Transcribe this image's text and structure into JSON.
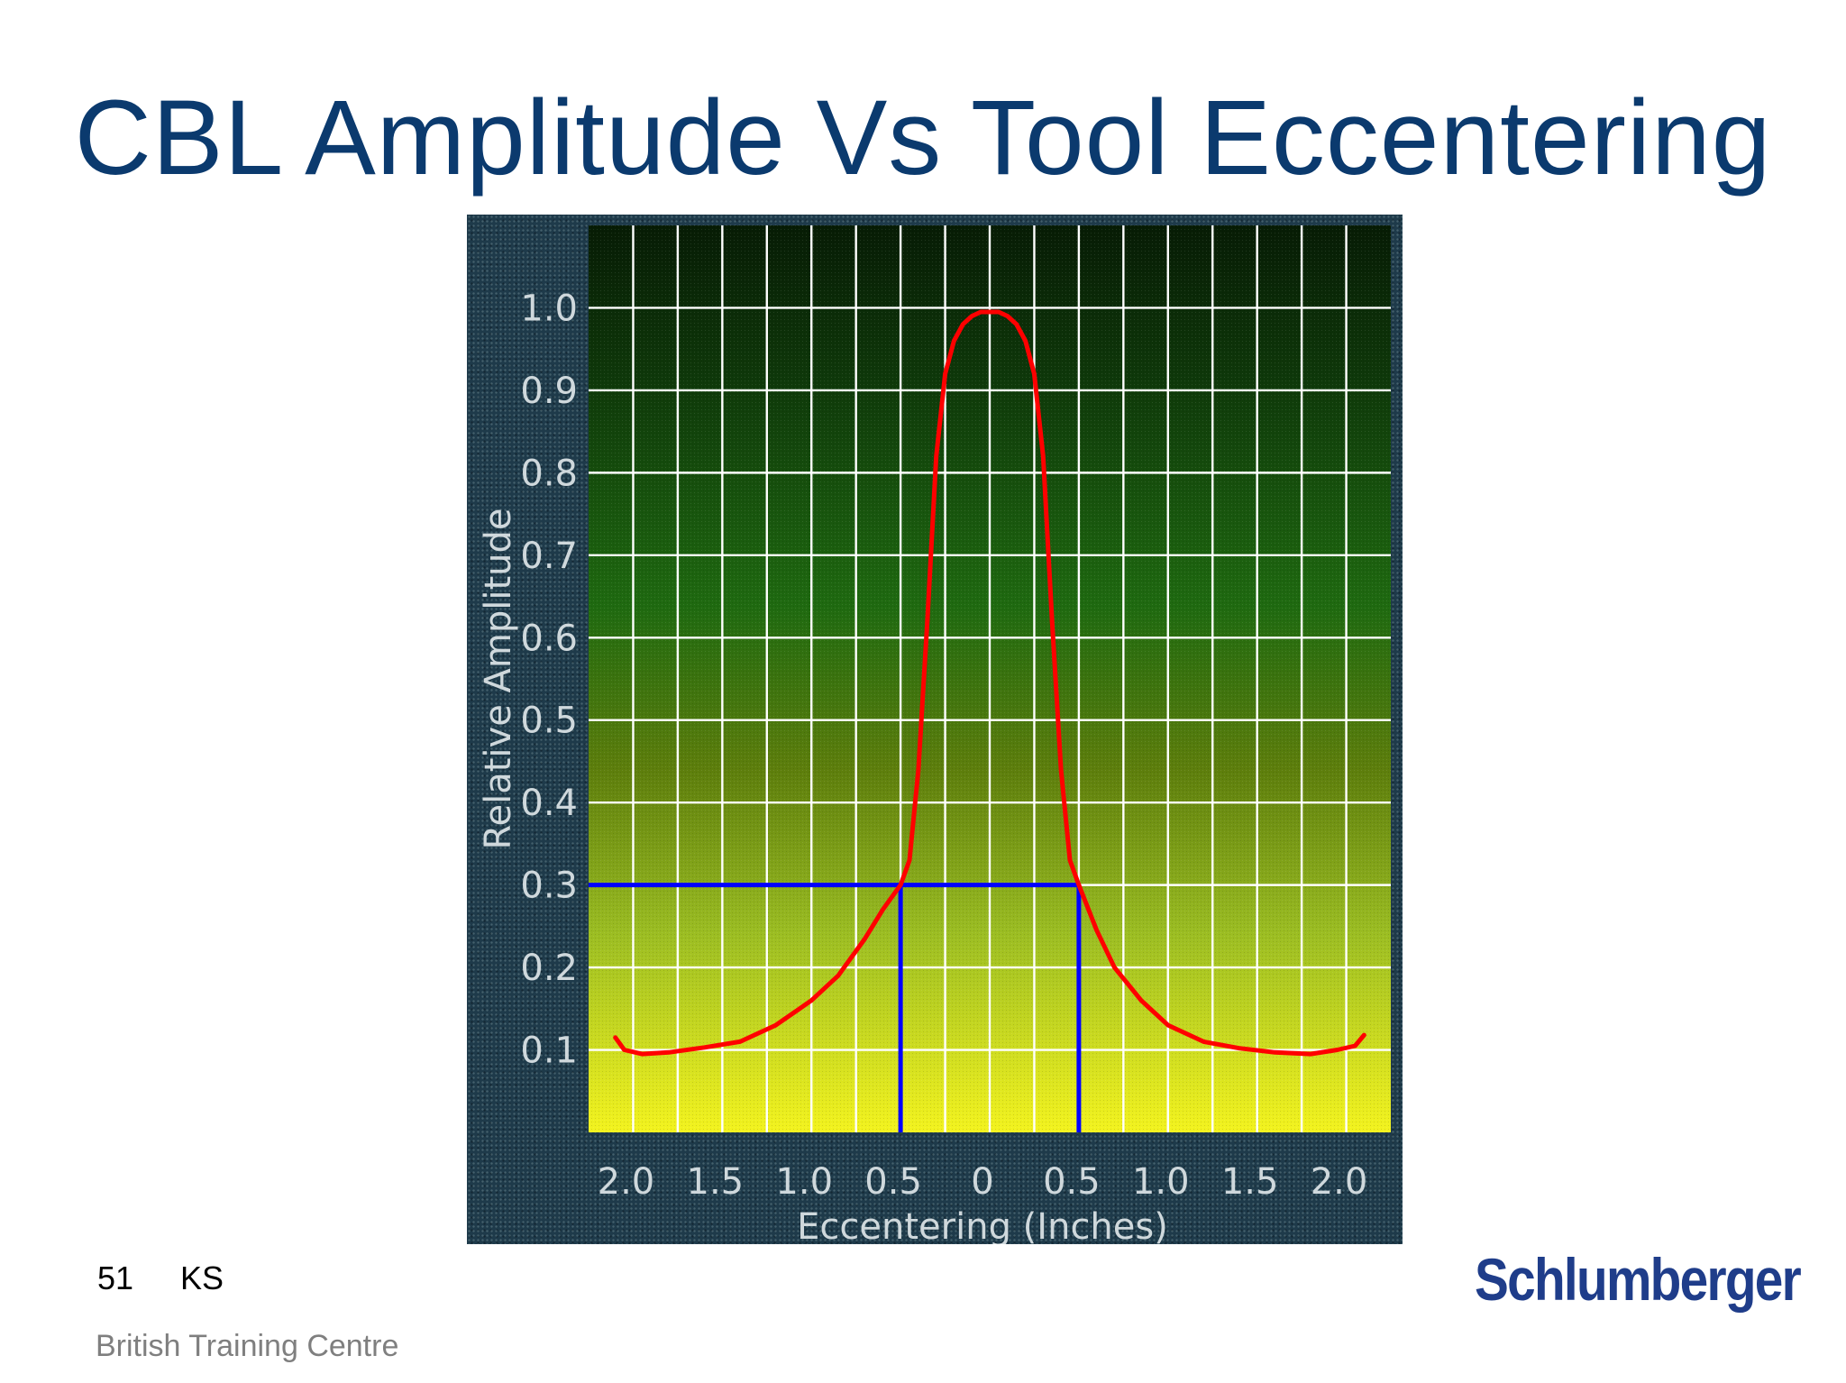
{
  "slide": {
    "title": "CBL Amplitude Vs Tool Eccentering",
    "page_number": "51",
    "author_initials": "KS",
    "organization": "British Training Centre",
    "company_logo": "Schlumberger"
  },
  "colors": {
    "title": "#0b3a6e",
    "curve": "#ff0000",
    "reference_lines": "#0000ff",
    "grid": "#ffffff",
    "plot_gradient_top": "#0a2008",
    "plot_gradient_mid": "#1f6a10",
    "plot_gradient_bottom": "#f0f01e",
    "logo": "#1f3d8a"
  },
  "chart_data": {
    "type": "line",
    "title": "",
    "xlabel": "Eccentering (Inches)",
    "ylabel": "Relative Amplitude",
    "xlim": [
      -2.25,
      2.25
    ],
    "ylim": [
      0.0,
      1.1
    ],
    "x_ticks": [
      -2.0,
      -1.5,
      -1.0,
      -0.5,
      0,
      0.5,
      1.0,
      1.5,
      2.0
    ],
    "x_tick_labels": [
      "2.0",
      "1.5",
      "1.0",
      "0.5",
      "0",
      "0.5",
      "1.0",
      "1.5",
      "2.0"
    ],
    "y_ticks": [
      0.1,
      0.2,
      0.3,
      0.4,
      0.5,
      0.6,
      0.7,
      0.8,
      0.9,
      1.0
    ],
    "y_tick_labels": [
      "0.1",
      "0.2",
      "0.3",
      "0.4",
      "0.5",
      "0.6",
      "0.7",
      "0.8",
      "0.9",
      "1.0"
    ],
    "grid": true,
    "legend": "none",
    "series": [
      {
        "x": [
          -2.1,
          -2.05,
          -1.95,
          -1.8,
          -1.6,
          -1.4,
          -1.2,
          -1.0,
          -0.85,
          -0.7,
          -0.6,
          -0.5,
          -0.45,
          -0.4,
          -0.35,
          -0.3,
          -0.25,
          -0.2,
          -0.15,
          -0.1,
          -0.05,
          0.0,
          0.05,
          0.1,
          0.15,
          0.2,
          0.25,
          0.3,
          0.35,
          0.4,
          0.45,
          0.5,
          0.6,
          0.7,
          0.85,
          1.0,
          1.2,
          1.4,
          1.6,
          1.8,
          1.95,
          2.05,
          2.1
        ],
        "y": [
          0.115,
          0.1,
          0.095,
          0.097,
          0.103,
          0.11,
          0.13,
          0.16,
          0.19,
          0.235,
          0.27,
          0.3,
          0.33,
          0.44,
          0.62,
          0.82,
          0.92,
          0.96,
          0.98,
          0.99,
          0.995,
          0.995,
          0.995,
          0.99,
          0.98,
          0.96,
          0.92,
          0.82,
          0.62,
          0.44,
          0.33,
          0.3,
          0.245,
          0.2,
          0.16,
          0.13,
          0.11,
          0.102,
          0.097,
          0.095,
          0.1,
          0.105,
          0.118
        ]
      }
    ],
    "reference_lines": {
      "amplitude": 0.3,
      "eccentering": [
        -0.5,
        0.5
      ]
    }
  }
}
